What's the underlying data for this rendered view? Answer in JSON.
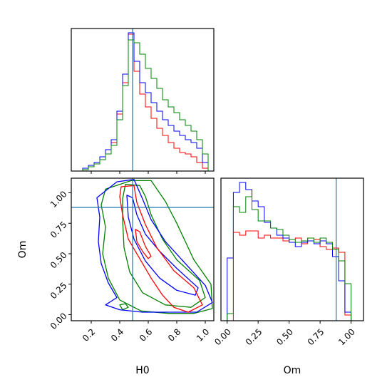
{
  "chart_data": {
    "type": "corner",
    "parameters": [
      "H0",
      "Om"
    ],
    "truth": {
      "H0": 0.49,
      "Om": 0.88
    },
    "truth_color": "#1f77b4",
    "series_colors": [
      "#ff0000",
      "#0000ff",
      "#008000"
    ],
    "panels": {
      "H0_hist": {
        "xlim": [
          0.06,
          1.06
        ],
        "ylim": [
          0,
          1.0
        ],
        "series": [
          {
            "color": "#ff0000",
            "bin_edges": [
              0.14,
              0.18,
              0.22,
              0.26,
              0.3,
              0.34,
              0.38,
              0.42,
              0.46,
              0.5,
              0.54,
              0.58,
              0.62,
              0.66,
              0.7,
              0.74,
              0.78,
              0.82,
              0.86,
              0.9,
              0.94,
              0.98,
              1.02
            ],
            "values": [
              0.01,
              0.03,
              0.05,
              0.08,
              0.12,
              0.2,
              0.4,
              0.62,
              0.96,
              0.7,
              0.54,
              0.45,
              0.37,
              0.3,
              0.25,
              0.2,
              0.16,
              0.13,
              0.12,
              0.1,
              0.06,
              0.02
            ]
          },
          {
            "color": "#0000ff",
            "bin_edges": [
              0.14,
              0.18,
              0.22,
              0.26,
              0.3,
              0.34,
              0.38,
              0.42,
              0.46,
              0.5,
              0.54,
              0.58,
              0.62,
              0.66,
              0.7,
              0.74,
              0.78,
              0.82,
              0.86,
              0.9,
              0.94,
              0.98,
              1.02
            ],
            "values": [
              0.02,
              0.04,
              0.06,
              0.1,
              0.15,
              0.22,
              0.42,
              0.68,
              0.97,
              0.77,
              0.62,
              0.55,
              0.48,
              0.42,
              0.36,
              0.32,
              0.28,
              0.25,
              0.22,
              0.2,
              0.16,
              0.06
            ]
          },
          {
            "color": "#008000",
            "bin_edges": [
              0.14,
              0.18,
              0.22,
              0.26,
              0.3,
              0.34,
              0.38,
              0.42,
              0.46,
              0.5,
              0.54,
              0.58,
              0.62,
              0.66,
              0.7,
              0.74,
              0.78,
              0.82,
              0.86,
              0.9,
              0.94,
              0.98,
              1.02
            ],
            "values": [
              0.01,
              0.03,
              0.05,
              0.08,
              0.12,
              0.18,
              0.36,
              0.6,
              0.92,
              0.9,
              0.82,
              0.72,
              0.65,
              0.58,
              0.5,
              0.45,
              0.41,
              0.36,
              0.32,
              0.28,
              0.22,
              0.12
            ]
          }
        ]
      },
      "Om_vs_H0": {
        "xlim": [
          0.06,
          1.06
        ],
        "ylim": [
          -0.05,
          1.12
        ],
        "xticks": [
          0.2,
          0.4,
          0.6,
          0.8,
          1.0
        ],
        "xticklabels": [
          "0.2",
          "0.4",
          "0.6",
          "0.8",
          "1.0"
        ],
        "yticks": [
          0.0,
          0.25,
          0.5,
          0.75,
          1.0
        ],
        "yticklabels": [
          "0.00",
          "0.25",
          "0.50",
          "0.75",
          "1.00"
        ],
        "xlabel": "H0",
        "ylabel": "Om",
        "contours": [
          {
            "color": "#008000",
            "points": [
              [
                0.48,
                1.1
              ],
              [
                0.62,
                1.1
              ],
              [
                0.72,
                0.93
              ],
              [
                0.8,
                0.75
              ],
              [
                0.92,
                0.45
              ],
              [
                1.04,
                0.25
              ],
              [
                1.05,
                0.05
              ],
              [
                0.92,
                0.01
              ],
              [
                0.74,
                0.01
              ],
              [
                0.55,
                0.03
              ],
              [
                0.4,
                0.12
              ],
              [
                0.32,
                0.3
              ],
              [
                0.28,
                0.5
              ],
              [
                0.3,
                0.72
              ],
              [
                0.27,
                0.9
              ],
              [
                0.3,
                1.03
              ]
            ]
          },
          {
            "color": "#008000",
            "points": [
              [
                0.44,
                1.07
              ],
              [
                0.54,
                1.06
              ],
              [
                0.58,
                0.97
              ],
              [
                0.62,
                0.82
              ],
              [
                0.7,
                0.62
              ],
              [
                0.8,
                0.45
              ],
              [
                0.96,
                0.28
              ],
              [
                1.0,
                0.14
              ],
              [
                0.9,
                0.06
              ],
              [
                0.72,
                0.08
              ],
              [
                0.56,
                0.18
              ],
              [
                0.47,
                0.35
              ],
              [
                0.43,
                0.55
              ],
              [
                0.42,
                0.78
              ],
              [
                0.42,
                0.95
              ]
            ]
          },
          {
            "color": "#008000",
            "points": [
              [
                0.42,
                0.04
              ],
              [
                0.46,
                0.06
              ],
              [
                0.44,
                0.09
              ],
              [
                0.4,
                0.08
              ]
            ]
          },
          {
            "color": "#0000ff",
            "points": [
              [
                0.38,
                1.09
              ],
              [
                0.5,
                1.11
              ],
              [
                0.56,
                0.95
              ],
              [
                0.62,
                0.78
              ],
              [
                0.72,
                0.6
              ],
              [
                0.86,
                0.42
              ],
              [
                1.0,
                0.24
              ],
              [
                1.05,
                0.1
              ],
              [
                0.94,
                0.02
              ],
              [
                0.76,
                0.02
              ],
              [
                0.56,
                0.02
              ],
              [
                0.4,
                0.04
              ],
              [
                0.3,
                0.08
              ],
              [
                0.38,
                0.14
              ],
              [
                0.32,
                0.26
              ],
              [
                0.27,
                0.42
              ],
              [
                0.25,
                0.6
              ],
              [
                0.26,
                0.8
              ],
              [
                0.24,
                0.96
              ]
            ]
          },
          {
            "color": "#0000ff",
            "points": [
              [
                0.45,
                0.98
              ],
              [
                0.49,
                0.96
              ],
              [
                0.52,
                0.82
              ],
              [
                0.58,
                0.66
              ],
              [
                0.68,
                0.52
              ],
              [
                0.8,
                0.38
              ],
              [
                0.95,
                0.22
              ],
              [
                0.93,
                0.16
              ],
              [
                0.8,
                0.2
              ],
              [
                0.68,
                0.3
              ],
              [
                0.58,
                0.44
              ],
              [
                0.5,
                0.62
              ],
              [
                0.46,
                0.8
              ]
            ]
          },
          {
            "color": "#ff0000",
            "points": [
              [
                0.41,
                1.05
              ],
              [
                0.5,
                1.06
              ],
              [
                0.52,
                0.92
              ],
              [
                0.58,
                0.74
              ],
              [
                0.66,
                0.55
              ],
              [
                0.78,
                0.36
              ],
              [
                0.92,
                0.22
              ],
              [
                0.98,
                0.08
              ],
              [
                0.88,
                0.02
              ],
              [
                0.78,
                0.06
              ],
              [
                0.7,
                0.16
              ],
              [
                0.62,
                0.3
              ],
              [
                0.54,
                0.46
              ],
              [
                0.46,
                0.62
              ],
              [
                0.42,
                0.82
              ],
              [
                0.4,
                0.97
              ]
            ]
          },
          {
            "color": "#ff0000",
            "points": [
              [
                0.51,
                0.7
              ],
              [
                0.54,
                0.68
              ],
              [
                0.58,
                0.56
              ],
              [
                0.62,
                0.48
              ],
              [
                0.6,
                0.46
              ],
              [
                0.56,
                0.52
              ],
              [
                0.52,
                0.6
              ]
            ]
          }
        ]
      },
      "Om_hist": {
        "xlim": [
          -0.05,
          1.1
        ],
        "ylim": [
          0,
          1.0
        ],
        "xticks": [
          0.0,
          0.25,
          0.5,
          0.75,
          1.0
        ],
        "xticklabels": [
          "0.00",
          "0.25",
          "0.50",
          "0.75",
          "1.00"
        ],
        "xlabel": "Om",
        "series": [
          {
            "color": "#ff0000",
            "bin_edges": [
              0.0,
              0.05,
              0.1,
              0.15,
              0.2,
              0.25,
              0.3,
              0.35,
              0.4,
              0.45,
              0.5,
              0.55,
              0.6,
              0.65,
              0.7,
              0.75,
              0.8,
              0.85,
              0.9,
              0.95,
              1.0
            ],
            "values": [
              0.0,
              0.62,
              0.6,
              0.63,
              0.63,
              0.58,
              0.6,
              0.58,
              0.58,
              0.56,
              0.57,
              0.58,
              0.54,
              0.58,
              0.57,
              0.52,
              0.5,
              0.51,
              0.48,
              0.04
            ]
          },
          {
            "color": "#0000ff",
            "bin_edges": [
              0.0,
              0.05,
              0.1,
              0.15,
              0.2,
              0.25,
              0.3,
              0.35,
              0.4,
              0.45,
              0.5,
              0.55,
              0.6,
              0.65,
              0.7,
              0.75,
              0.8,
              0.85,
              0.9,
              0.95,
              1.0
            ],
            "values": [
              0.44,
              0.9,
              0.97,
              0.92,
              0.84,
              0.8,
              0.69,
              0.65,
              0.6,
              0.58,
              0.55,
              0.52,
              0.55,
              0.56,
              0.54,
              0.56,
              0.54,
              0.45,
              0.28,
              0.06
            ]
          },
          {
            "color": "#008000",
            "bin_edges": [
              0.0,
              0.05,
              0.1,
              0.15,
              0.2,
              0.25,
              0.3,
              0.35,
              0.4,
              0.45,
              0.5,
              0.55,
              0.6,
              0.65,
              0.7,
              0.75,
              0.8,
              0.85,
              0.9,
              0.95,
              1.0
            ],
            "values": [
              0.05,
              0.8,
              0.76,
              0.87,
              0.78,
              0.7,
              0.7,
              0.65,
              0.64,
              0.6,
              0.57,
              0.55,
              0.56,
              0.58,
              0.55,
              0.58,
              0.55,
              0.5,
              0.42,
              0.26
            ]
          }
        ]
      }
    }
  }
}
